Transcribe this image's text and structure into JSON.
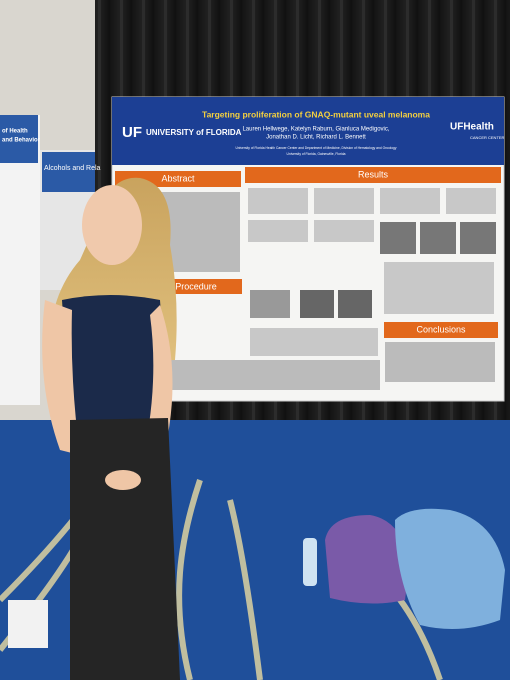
{
  "poster": {
    "logo_left_mark": "UF",
    "logo_left_name": "UNIVERSITY of FLORIDA",
    "title": "Targeting proliferation of GNAQ-mutant uveal melanoma",
    "authors_line1": "Lauren Hellwege, Katelyn Raburn, Gianluca Medigovic,",
    "authors_line2": "Jonathan D. Licht, Richard L. Bennett",
    "affiliation_line1": "University of Florida Health Cancer Center and Department of Medicine, Division of Hematology and Oncology",
    "affiliation_line2": "University of Florida, Gainesville, Florida",
    "logo_right_name": "UFHealth",
    "logo_right_sub": "CANCER CENTER",
    "sections": [
      "Abstract",
      "Results",
      "Procedure",
      "Conclusions"
    ]
  },
  "side_poster": {
    "heading_1": "of Health",
    "heading_2": "and Behavior",
    "banner": "Alcohols and Rela"
  }
}
